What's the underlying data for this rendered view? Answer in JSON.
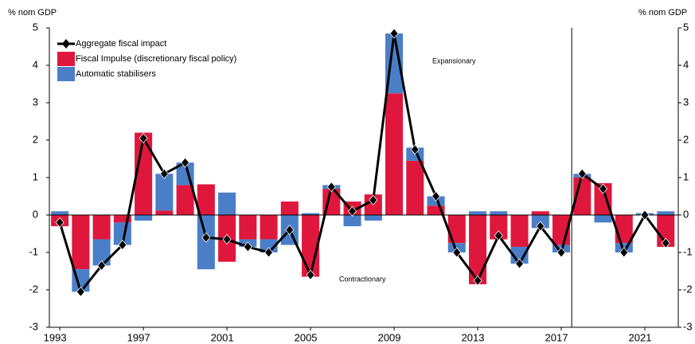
{
  "chart_data": {
    "type": "bar-line",
    "y_label": "% nom GDP",
    "y2_label": "% nom GDP",
    "annotations": [
      "Expansionary",
      "Contractionary"
    ],
    "x": [
      1993,
      1994,
      1995,
      1996,
      1997,
      1998,
      1999,
      2000,
      2001,
      2002,
      2003,
      2004,
      2005,
      2006,
      2007,
      2008,
      2009,
      2010,
      2011,
      2012,
      2013,
      2014,
      2015,
      2016,
      2017,
      2018,
      2019,
      2020,
      2021,
      2022
    ],
    "series": [
      {
        "name": "Aggregate fiscal impact",
        "kind": "line",
        "color": "#000000",
        "values": [
          -0.2,
          -2.05,
          -1.35,
          -0.8,
          2.05,
          1.1,
          1.4,
          -0.6,
          -0.65,
          -0.85,
          -1.0,
          -0.4,
          -1.6,
          0.75,
          0.1,
          0.4,
          4.85,
          1.75,
          0.5,
          -1.0,
          -1.75,
          -0.55,
          -1.3,
          -0.3,
          -1.0,
          1.1,
          0.7,
          -1.0,
          0,
          -0.75
        ]
      },
      {
        "name": "Fiscal Impulse (discretionary fiscal policy)",
        "kind": "bar",
        "color": "#e0173d",
        "values": [
          -0.3,
          -1.45,
          -0.65,
          -0.2,
          2.2,
          0.12,
          0.8,
          0.82,
          -1.25,
          -0.65,
          -0.65,
          0.36,
          -1.65,
          0.7,
          0.36,
          0.55,
          3.25,
          1.45,
          0.25,
          -0.75,
          -1.85,
          -0.65,
          -0.85,
          0.1,
          -0.8,
          1.0,
          0.85,
          -0.75,
          0,
          -0.85
        ]
      },
      {
        "name": "Automatic stabilisers",
        "kind": "bar",
        "color": "#4a7fc8",
        "values": [
          0.1,
          -0.6,
          -0.7,
          -0.6,
          -0.15,
          0.98,
          0.6,
          -1.45,
          0.6,
          -0.2,
          -0.35,
          -0.8,
          0.05,
          0.1,
          -0.3,
          -0.15,
          1.6,
          0.35,
          0.25,
          -0.25,
          0.1,
          0.1,
          -0.45,
          -0.35,
          -0.2,
          0.1,
          -0.2,
          -0.25,
          0.05,
          0.1
        ]
      }
    ],
    "forecast_divider": 2017.5,
    "xlim": [
      1992.5,
      2022.6
    ],
    "xticks": [
      1993,
      1997,
      2001,
      2005,
      2009,
      2013,
      2017,
      2021
    ],
    "ylim": [
      -3,
      5
    ],
    "yticks": [
      -3,
      -2,
      -1,
      0,
      1,
      2,
      3,
      4,
      5
    ],
    "y2lim": [
      -3,
      5
    ],
    "y2ticks": [
      -3,
      -2,
      -1,
      0,
      1,
      2,
      3,
      4,
      5
    ],
    "legend": "top-left"
  }
}
